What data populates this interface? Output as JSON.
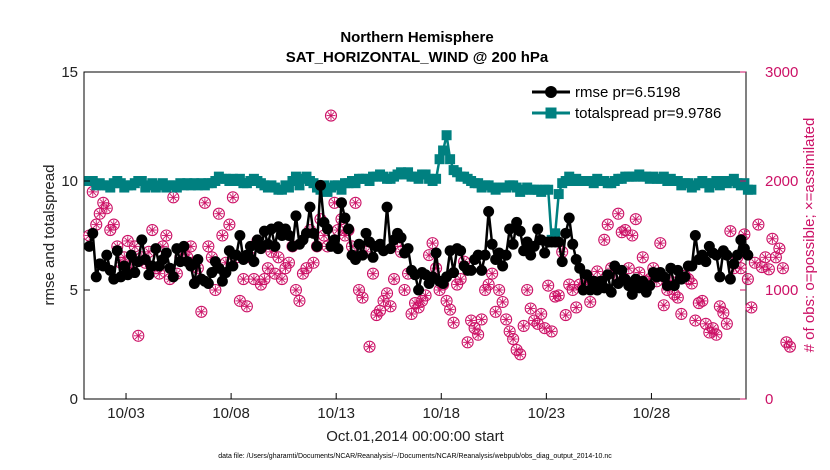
{
  "chart_data": {
    "type": "line",
    "title": "Northern Hemisphere",
    "subtitle": "SAT_HORIZONTAL_WIND @ 200 hPa",
    "xlabel": "Oct.01,2014 00:00:00 start",
    "ylabel_left": "rmse and totalspread",
    "ylabel_right": "# of obs: o=possible; ×=assimilated",
    "footer": "data file: /Users/gharamti/Documents/NCAR/Reanalysis/~/Documents/NCAR/Reanalysis/webpub/obs_diag_output_2014-10.nc",
    "x_ticks": [
      {
        "day": 3,
        "label": "10/03"
      },
      {
        "day": 8,
        "label": "10/08"
      },
      {
        "day": 13,
        "label": "10/13"
      },
      {
        "day": 18,
        "label": "10/18"
      },
      {
        "day": 23,
        "label": "10/23"
      },
      {
        "day": 28,
        "label": "10/28"
      }
    ],
    "xlim_days": [
      1,
      32.5
    ],
    "ylim_left": [
      0,
      15
    ],
    "yticks_left": [
      "0",
      "5",
      "10",
      "15"
    ],
    "ylim_right": [
      0,
      3000
    ],
    "yticks_right": [
      "0",
      "1000",
      "2000",
      "3000"
    ],
    "colors": {
      "rmse": "#000000",
      "totalspread": "#008080",
      "obs": "#cc1166"
    },
    "series": [
      {
        "name": "rmse",
        "legend": "rmse pr=6.5198",
        "values": [
          7.0,
          7.6,
          5.6,
          6.2,
          6.1,
          6.6,
          5.9,
          5.5,
          6.8,
          5.6,
          6.1,
          5.7,
          6.6,
          5.8,
          6.3,
          7.3,
          6.4,
          5.7,
          6.1,
          6.9,
          6.1,
          6.4,
          6.7,
          6.0,
          5.6,
          6.9,
          6.3,
          7.0,
          6.3,
          6.1,
          5.3,
          6.4,
          5.5,
          5.4,
          5.3,
          5.8,
          6.3,
          6.0,
          5.4,
          5.8,
          6.8,
          6.1,
          6.6,
          7.5,
          6.4,
          6.6,
          7.0,
          6.3,
          7.3,
          6.9,
          7.7,
          7.1,
          7.8,
          7.0,
          7.9,
          7.5,
          7.8,
          7.5,
          7.0,
          8.4,
          7.1,
          7.3,
          7.6,
          8.8,
          7.6,
          7.0,
          9.8,
          8.1,
          7.8,
          7.0,
          7.3,
          6.9,
          9.0,
          8.3,
          7.8,
          6.6,
          6.4,
          7.1,
          6.6,
          7.6,
          7.2,
          6.5,
          7.0,
          7.1,
          6.8,
          8.8,
          6.9,
          7.3,
          7.6,
          7.4,
          6.7,
          6.9,
          5.9,
          5.7,
          5.0,
          5.8,
          5.7,
          5.3,
          5.6,
          6.7,
          5.4,
          5.3,
          5.6,
          6.8,
          5.8,
          6.9,
          6.8,
          6.1,
          5.9,
          5.9,
          6.4,
          6.6,
          5.9,
          6.6,
          8.6,
          7.1,
          6.4,
          6.7,
          6.1,
          6.6,
          7.8,
          7.1,
          8.1,
          7.7,
          6.8,
          7.2,
          6.6,
          7.0,
          7.8,
          7.3,
          6.7,
          7.2,
          7.2,
          7.2,
          7.2,
          6.3,
          7.6,
          8.3,
          7.1,
          6.4,
          6.0,
          5.0,
          5.7,
          5.0,
          5.4,
          5.0,
          5.4,
          5.1,
          5.7,
          4.9,
          6.1,
          5.3,
          5.9,
          5.5,
          5.2,
          4.8,
          5.5,
          5.1,
          5.4,
          4.9,
          5.2,
          5.8,
          5.6,
          5.8,
          5.6,
          5.2,
          6.0,
          5.2,
          5.9,
          5.5,
          5.6,
          6.1,
          6.1,
          7.5,
          6.4,
          6.6,
          6.3,
          7.0,
          6.7,
          6.6,
          5.6,
          6.8,
          6.6,
          5.5,
          6.2,
          6.6,
          7.3,
          6.9,
          6.6
        ]
      },
      {
        "name": "totalspread",
        "legend": "totalspread pr=9.9786",
        "values": [
          10.0,
          10.0,
          9.8,
          9.9,
          9.8,
          9.8,
          9.7,
          9.9,
          10.0,
          9.9,
          9.7,
          9.8,
          9.8,
          9.9,
          10.0,
          10.0,
          9.7,
          9.8,
          9.9,
          9.7,
          9.8,
          9.9,
          9.7,
          9.8,
          9.8,
          9.7,
          9.9,
          9.8,
          9.9,
          9.8,
          9.9,
          9.8,
          9.9,
          9.8,
          9.9,
          9.9,
          10.0,
          10.2,
          10.1,
          10.1,
          10.0,
          10.1,
          10.0,
          10.1,
          9.9,
          9.9,
          10.0,
          10.1,
          10.0,
          9.9,
          9.8,
          9.7,
          9.8,
          9.7,
          9.6,
          9.6,
          9.8,
          9.7,
          10.0,
          10.2,
          9.8,
          10.1,
          10.2,
          10.0,
          9.9,
          9.7,
          9.6,
          9.8,
          9.5,
          9.7,
          9.8,
          9.8,
          9.6,
          9.9,
          9.9,
          10.0,
          9.9,
          10.1,
          10.1,
          10.1,
          10.0,
          10.2,
          10.2,
          10.3,
          10.2,
          10.1,
          10.1,
          10.2,
          10.3,
          10.4,
          10.3,
          10.4,
          10.2,
          10.2,
          10.1,
          10.3,
          10.3,
          10.1,
          10.0,
          10.1,
          11.0,
          11.4,
          12.1,
          11.0,
          10.5,
          10.4,
          10.2,
          10.2,
          10.1,
          10.0,
          9.9,
          9.9,
          9.7,
          9.8,
          9.8,
          9.7,
          9.6,
          9.7,
          9.7,
          9.7,
          9.8,
          9.8,
          9.7,
          9.5,
          9.6,
          9.7,
          9.6,
          9.6,
          9.6,
          9.5,
          9.6,
          9.6,
          7.3,
          7.6,
          9.4,
          9.9,
          10.0,
          10.2,
          10.0,
          10.1,
          10.0,
          10.0,
          10.0,
          10.0,
          9.9,
          10.1,
          10.0,
          10.0,
          9.9,
          9.9,
          10.0,
          10.1,
          10.1,
          10.2,
          10.2,
          10.2,
          10.2,
          10.3,
          10.2,
          10.2,
          10.1,
          10.2,
          10.1,
          10.1,
          10.2,
          10.0,
          10.1,
          10.0,
          10.0,
          9.8,
          9.9,
          9.9,
          9.7,
          9.8,
          9.9,
          10.0,
          9.9,
          9.7,
          9.9,
          10.0,
          9.8,
          10.0,
          9.9,
          10.0,
          10.1,
          9.9,
          9.8,
          9.9,
          9.6,
          9.6
        ]
      },
      {
        "name": "# of obs (possible/assimilated)",
        "axis": "right",
        "values": [
          1500,
          1900,
          1600,
          1700,
          1800,
          1750,
          1550,
          1600,
          1400,
          1250,
          1300,
          1450,
          1200,
          1400,
          580,
          1300,
          1250,
          1350,
          1550,
          1200,
          1150,
          1400,
          1500,
          1100,
          1850,
          1150,
          1300,
          1350,
          1300,
          1400,
          1250,
          1200,
          800,
          1800,
          1400,
          1300,
          1000,
          1700,
          1500,
          1250,
          1600,
          1850,
          1300,
          900,
          1100,
          850,
          1300,
          1100,
          1450,
          1050,
          1100,
          1200,
          1350,
          1150,
          1300,
          1100,
          1200,
          1250,
          1400,
          1000,
          900,
          1150,
          1200,
          1550,
          1250,
          1400,
          1650,
          1500,
          1400,
          2600,
          1800,
          1550,
          1650,
          1500,
          1550,
          1400,
          1800,
          1000,
          930,
          1350,
          480,
          1150,
          770,
          810,
          900,
          970,
          850,
          1100,
          1450,
          1350,
          1000,
          1150,
          780,
          880,
          840,
          900,
          950,
          1320,
          1430,
          1200,
          1000,
          1050,
          900,
          820,
          700,
          1050,
          1100,
          1260,
          520,
          720,
          650,
          590,
          730,
          1000,
          1050,
          1150,
          800,
          1000,
          890,
          730,
          620,
          550,
          450,
          410,
          670,
          1000,
          830,
          720,
          690,
          780,
          650,
          1040,
          620,
          940,
          950,
          1350,
          770,
          1050,
          1000,
          840,
          1050,
          1030,
          1100,
          890,
          1050,
          1170,
          1060,
          1460,
          1600,
          1200,
          1150,
          1700,
          1530,
          1550,
          1200,
          1500,
          1650,
          1160,
          1300,
          1080,
          1100,
          1200,
          1080,
          1430,
          860,
          1000,
          1080,
          960,
          930,
          780,
          1130,
          1100,
          1060,
          720,
          880,
          900,
          690,
          610,
          650,
          590,
          850,
          790,
          690,
          1540,
          1200,
          1300,
          1200,
          1510,
          1100,
          840,
          1250,
          1600,
          1210,
          1300,
          1190,
          1470,
          1300,
          1380,
          1200,
          520,
          480
        ]
      }
    ]
  }
}
